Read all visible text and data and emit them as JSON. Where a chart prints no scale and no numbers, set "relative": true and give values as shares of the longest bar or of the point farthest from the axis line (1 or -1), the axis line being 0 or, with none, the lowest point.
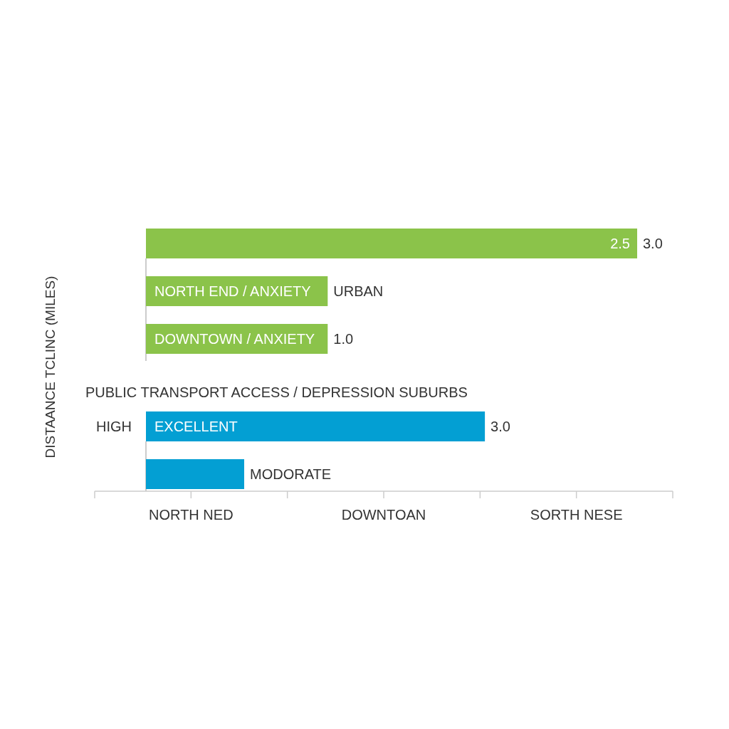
{
  "chart_data": {
    "type": "bar",
    "orientation": "horizontal",
    "relative": true,
    "categories": [
      "2.5",
      "NORTH END / ANXIETY",
      "DOWNTOWN / ANXIETY",
      "EXCELLENT",
      null
    ],
    "values": [
      1,
      0.37,
      0.37,
      0.69,
      0.2
    ],
    "colors": [
      "#8bc34a",
      "#8bc34a",
      "#8bc34a",
      "#039fd3",
      "#039fd3"
    ],
    "annotations": [
      "3.0",
      "URBAN",
      "1.0",
      "3.0",
      "MODORATE",
      "HIGH",
      "PUBLIC TRANSPORT ACCESS / DEPRESSION SUBURBS",
      "NORTH NED",
      "DOWNTOAN",
      "SORTH NESE",
      "DISTAANCE TCLINC (MILES)"
    ]
  }
}
